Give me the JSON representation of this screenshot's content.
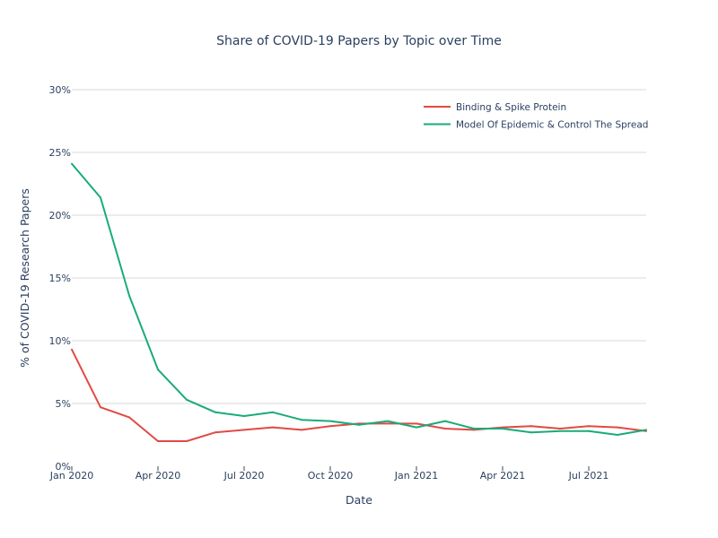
{
  "chart_data": {
    "type": "line",
    "title": "Share of COVID-19 Papers by Topic over Time",
    "xlabel": "Date",
    "ylabel": "% of COVID-19 Research Papers",
    "ylim": [
      0,
      30
    ],
    "yticks": [
      0,
      5,
      10,
      15,
      20,
      25,
      30
    ],
    "ytick_labels": [
      "0%",
      "5%",
      "10%",
      "15%",
      "20%",
      "25%",
      "30%"
    ],
    "xlim": [
      0,
      20
    ],
    "xticks": [
      0,
      3,
      6,
      9,
      12,
      15,
      18
    ],
    "xtick_labels": [
      "Jan 2020",
      "Apr 2020",
      "Jul 2020",
      "Oct 2020",
      "Jan 2021",
      "Apr 2021",
      "Jul 2021"
    ],
    "x": [
      "Jan 2020",
      "Feb 2020",
      "Mar 2020",
      "Apr 2020",
      "May 2020",
      "Jun 2020",
      "Jul 2020",
      "Aug 2020",
      "Sep 2020",
      "Oct 2020",
      "Nov 2020",
      "Dec 2020",
      "Jan 2021",
      "Feb 2021",
      "Mar 2021",
      "Apr 2021",
      "May 2021",
      "Jun 2021",
      "Jul 2021",
      "Aug 2021",
      "Sep 2021"
    ],
    "legend_position": "top-right",
    "series": [
      {
        "name": "Binding & Spike Protein",
        "color": "#e04a45",
        "values": [
          9.3,
          4.7,
          3.9,
          2.0,
          2.0,
          2.7,
          2.9,
          3.1,
          2.9,
          3.2,
          3.4,
          3.4,
          3.4,
          3.0,
          2.9,
          3.1,
          3.2,
          3.0,
          3.2,
          3.1,
          2.8
        ]
      },
      {
        "name": "Model Of Epidemic & Control The Spread",
        "color": "#1aab78",
        "values": [
          24.1,
          21.4,
          13.6,
          7.7,
          5.3,
          4.3,
          4.0,
          4.3,
          3.7,
          3.6,
          3.3,
          3.6,
          3.1,
          3.6,
          3.0,
          3.0,
          2.7,
          2.8,
          2.8,
          2.5,
          2.9
        ]
      }
    ]
  }
}
